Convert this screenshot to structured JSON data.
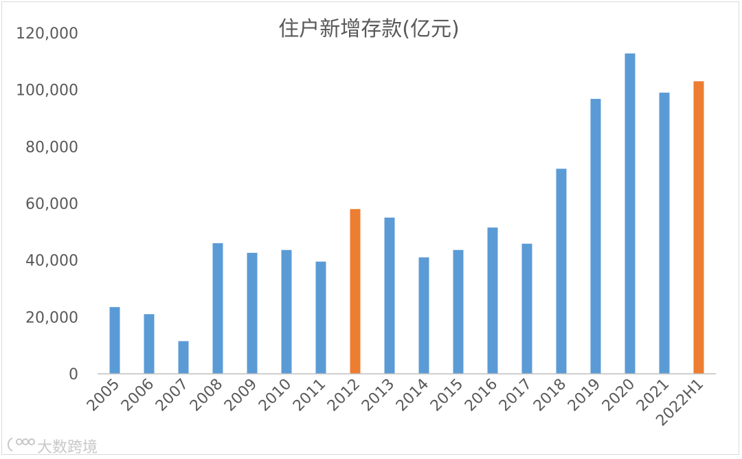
{
  "chart_data": {
    "type": "bar",
    "title": "住户新增存款(亿元)",
    "categories": [
      "2005",
      "2006",
      "2007",
      "2008",
      "2009",
      "2010",
      "2011",
      "2012",
      "2013",
      "2014",
      "2015",
      "2016",
      "2017",
      "2018",
      "2019",
      "2020",
      "2021",
      "2022H1"
    ],
    "values": [
      23500,
      21000,
      11500,
      46000,
      42600,
      43600,
      39500,
      58000,
      55000,
      41000,
      43600,
      51500,
      45800,
      72200,
      96800,
      112800,
      99000,
      103000
    ],
    "highlight_categories": [
      "2012",
      "2022H1"
    ],
    "colors": {
      "default": "#5b9bd5",
      "highlight": "#ed7d31"
    },
    "yticks": [
      "0",
      "20,000",
      "40,000",
      "60,000",
      "80,000",
      "100,000",
      "120,000"
    ],
    "ylim": [
      0,
      120000
    ],
    "xlabel": "",
    "ylabel": "",
    "grid": false,
    "legend": "none"
  },
  "watermark": {
    "icon": "logo-icon",
    "text": "大数跨境"
  }
}
